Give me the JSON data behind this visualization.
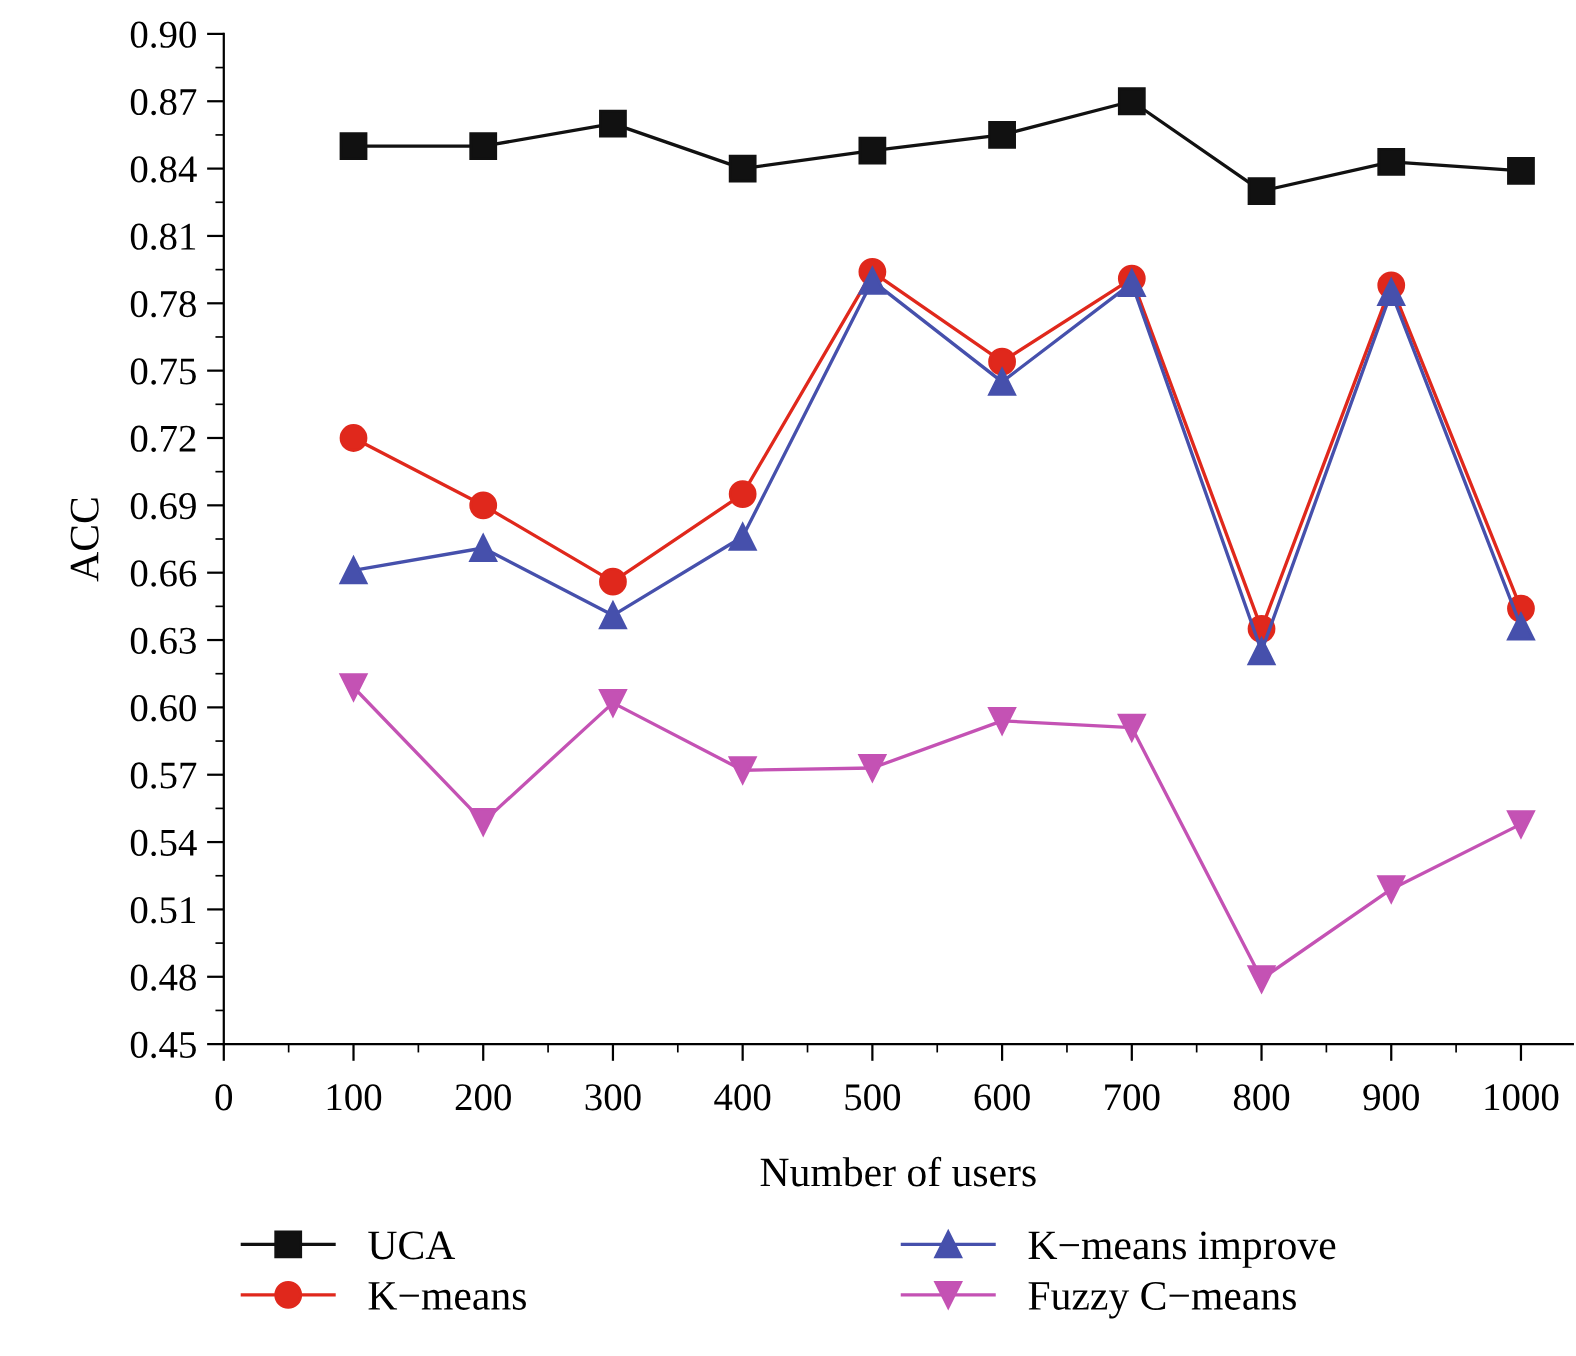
{
  "chart_data": {
    "type": "line",
    "xlabel": "Number of users",
    "ylabel": "ACC",
    "x": [
      100,
      200,
      300,
      400,
      500,
      600,
      700,
      800,
      900,
      1000
    ],
    "series": [
      {
        "name": "UCA",
        "color": "#111111",
        "marker": "square",
        "values": [
          0.85,
          0.85,
          0.86,
          0.84,
          0.848,
          0.855,
          0.87,
          0.83,
          0.843,
          0.839
        ]
      },
      {
        "name": "K−means",
        "color": "#e0281c",
        "marker": "circle",
        "values": [
          0.72,
          0.69,
          0.656,
          0.695,
          0.794,
          0.754,
          0.791,
          0.635,
          0.788,
          0.644
        ]
      },
      {
        "name": "K−means improve",
        "color": "#4650ac",
        "marker": "triangle",
        "values": [
          0.661,
          0.671,
          0.641,
          0.676,
          0.79,
          0.745,
          0.789,
          0.625,
          0.785,
          0.636
        ]
      },
      {
        "name": "Fuzzy C−means",
        "color": "#c452b4",
        "marker": "triangle_down",
        "values": [
          0.609,
          0.549,
          0.602,
          0.572,
          0.573,
          0.594,
          0.591,
          0.479,
          0.519,
          0.548
        ]
      }
    ],
    "xlim": [
      0,
      1040
    ],
    "xticks": [
      0,
      100,
      200,
      300,
      400,
      500,
      600,
      700,
      800,
      900,
      1000
    ],
    "ylim": [
      0.45,
      0.9
    ],
    "yticks": [
      {
        "value": 0.45,
        "label": "0.45"
      },
      {
        "value": 0.48,
        "label": "0.48"
      },
      {
        "value": 0.51,
        "label": "0.51"
      },
      {
        "value": 0.54,
        "label": "0.54"
      },
      {
        "value": 0.57,
        "label": "0.57"
      },
      {
        "value": 0.6,
        "label": "0.60"
      },
      {
        "value": 0.63,
        "label": "0.63"
      },
      {
        "value": 0.66,
        "label": "0.66"
      },
      {
        "value": 0.69,
        "label": "0.69"
      },
      {
        "value": 0.72,
        "label": "0.72"
      },
      {
        "value": 0.75,
        "label": "0.75"
      },
      {
        "value": 0.78,
        "label": "0.78"
      },
      {
        "value": 0.81,
        "label": "0.81"
      },
      {
        "value": 0.84,
        "label": "0.84"
      },
      {
        "value": 0.87,
        "label": "0.87"
      },
      {
        "value": 0.9,
        "label": "0.90"
      }
    ],
    "grid": false,
    "legend": "bottom",
    "line_style": "solid"
  }
}
